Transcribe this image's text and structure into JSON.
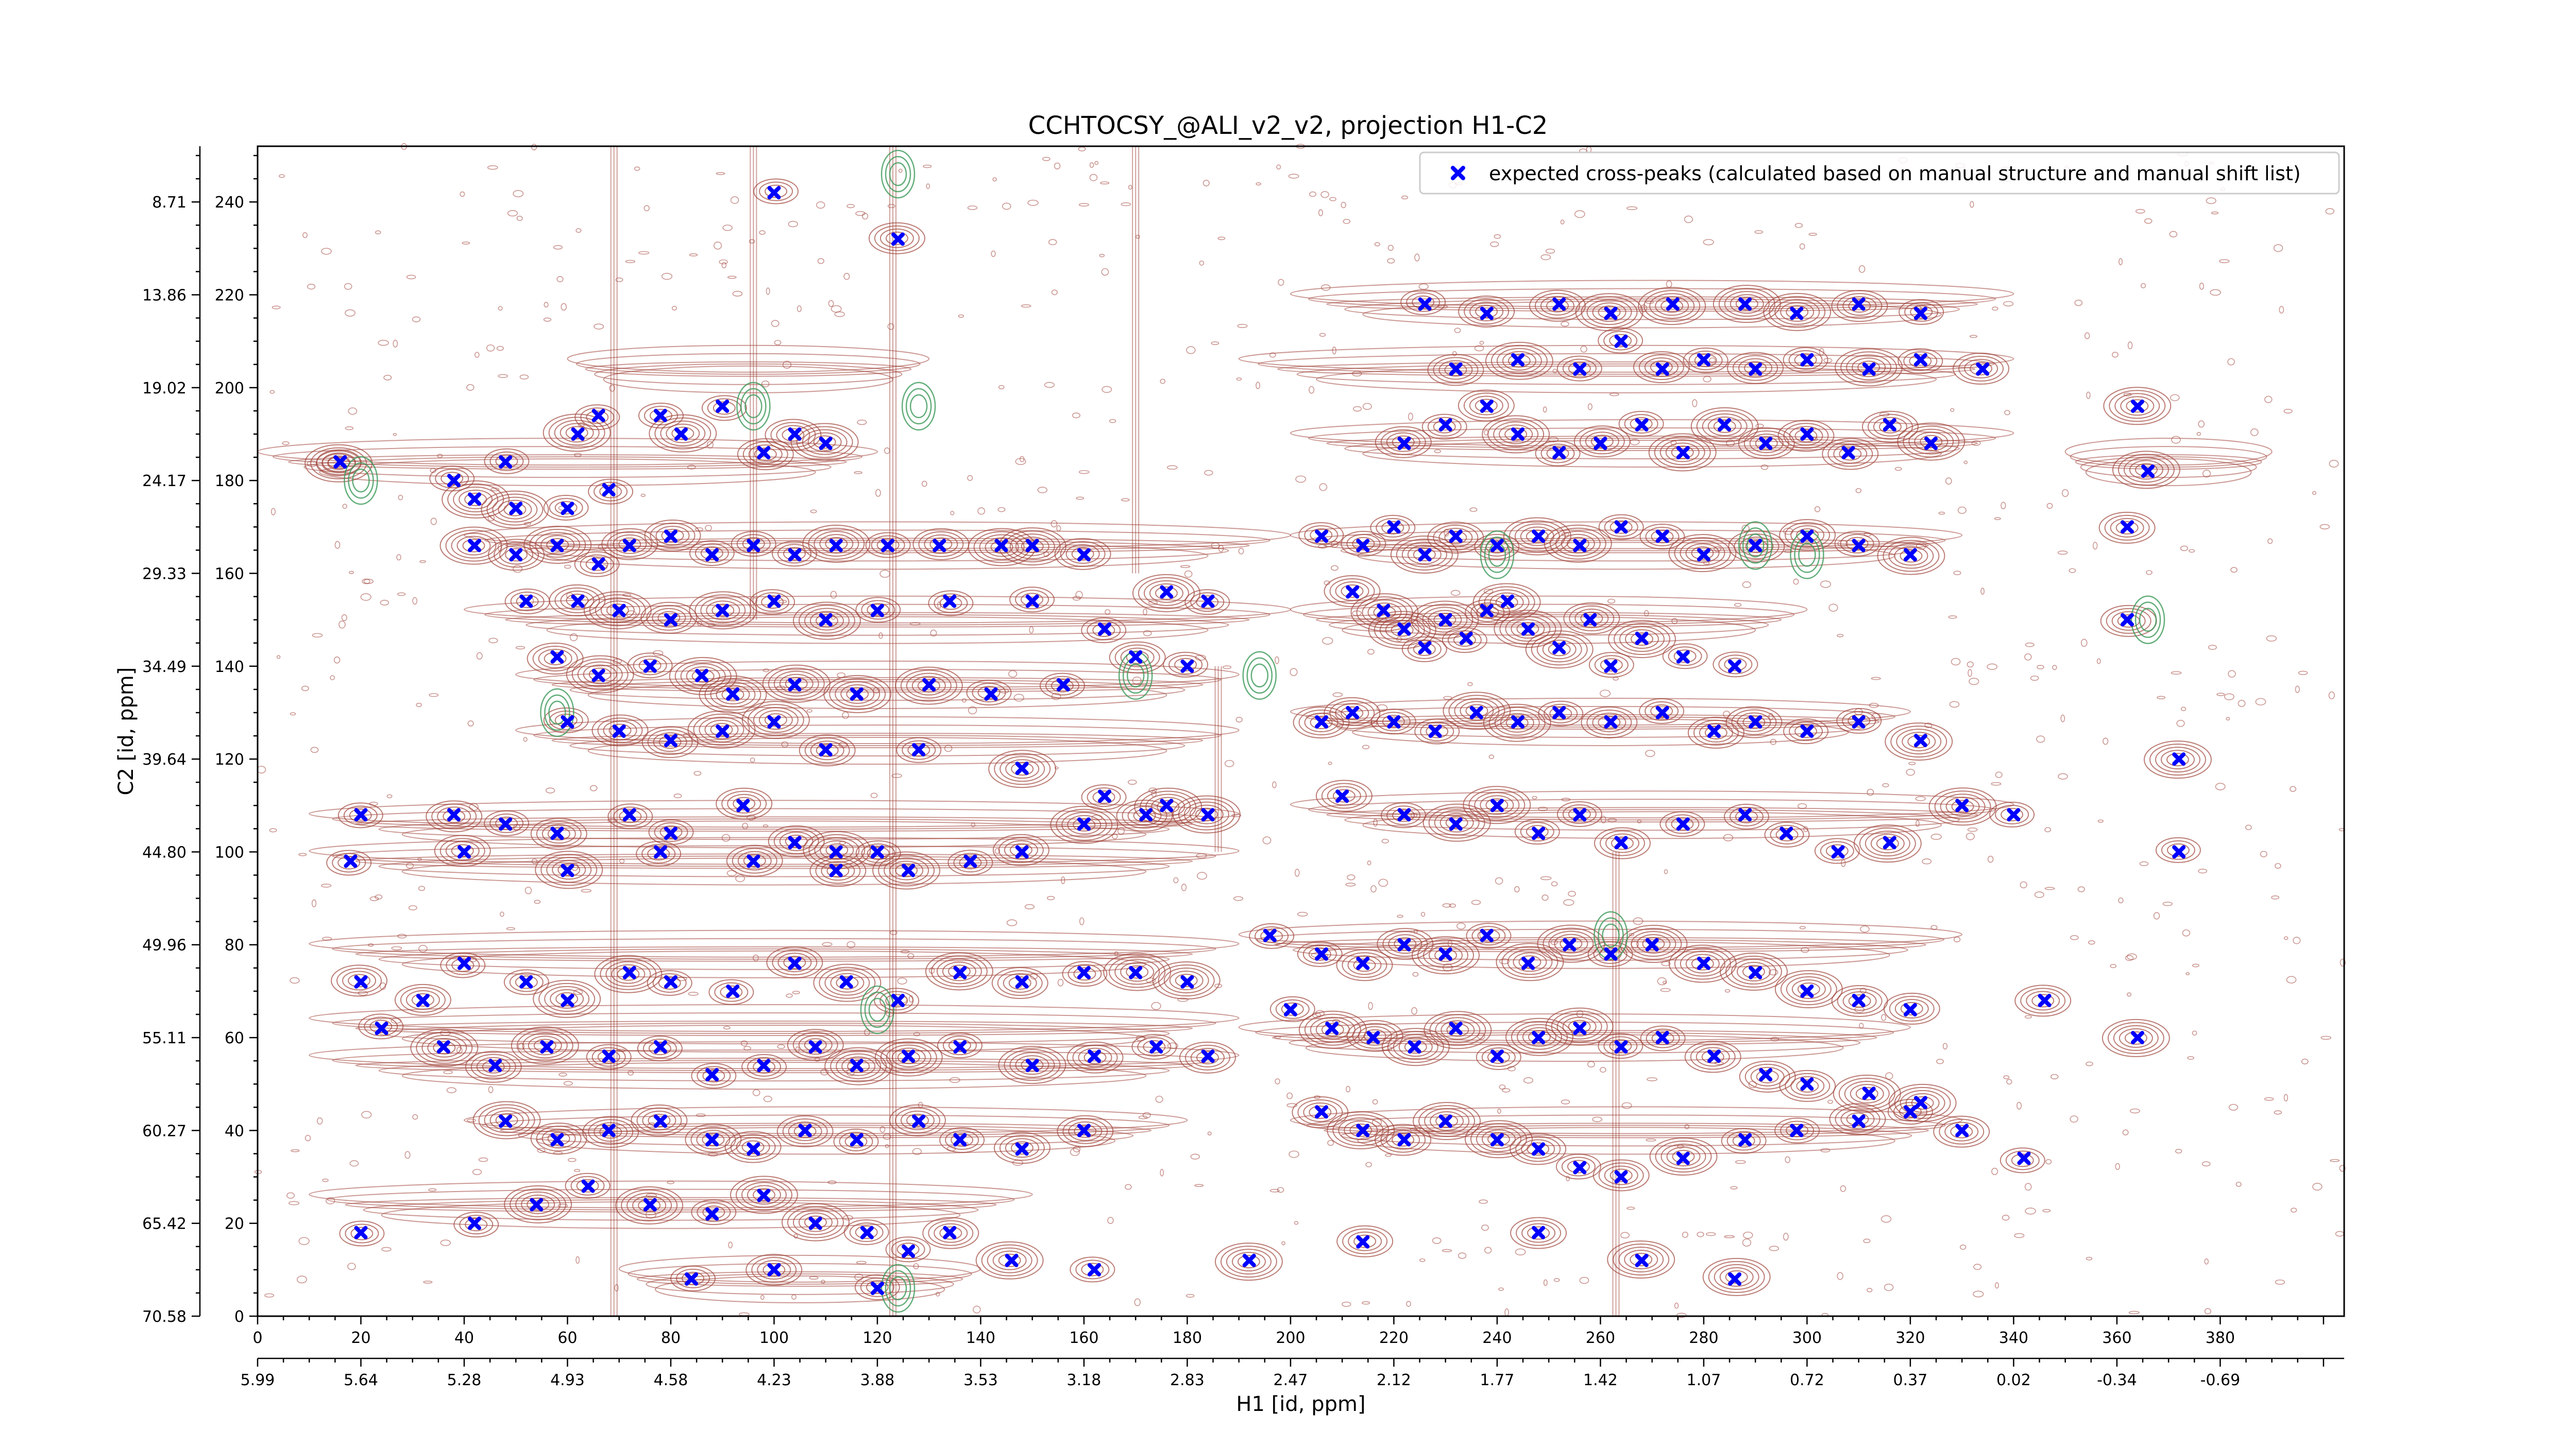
{
  "chart_data": {
    "type": "scatter",
    "title": "CCHTOCSY_@ALI_v2_v2, projection H1-C2",
    "xlabel": "H1 [id, ppm]",
    "ylabel": "C2 [id, ppm]",
    "xlim": [
      0,
      404
    ],
    "ylim": [
      0,
      252
    ],
    "x_ticks": [
      0,
      20,
      40,
      60,
      80,
      100,
      120,
      140,
      160,
      180,
      200,
      220,
      240,
      260,
      280,
      300,
      320,
      340,
      360,
      380
    ],
    "x_ppm_ticks": [
      "5.99",
      "5.64",
      "5.28",
      "4.93",
      "4.58",
      "4.23",
      "3.88",
      "3.53",
      "3.18",
      "2.83",
      "2.47",
      "2.12",
      "1.77",
      "1.42",
      "1.07",
      "0.72",
      "0.37",
      "0.02",
      "-0.34",
      "-0.69"
    ],
    "y_ticks": [
      0,
      20,
      40,
      60,
      80,
      100,
      120,
      140,
      160,
      180,
      200,
      220,
      240
    ],
    "y_ppm_ticks": [
      "70.58",
      "65.42",
      "60.27",
      "55.11",
      "49.96",
      "44.80",
      "39.64",
      "34.49",
      "29.33",
      "24.17",
      "19.02",
      "13.86",
      "8.71"
    ],
    "legend": {
      "placement": "top-right",
      "label": "expected cross-peaks (calculated based on manual structure and manual shift list)"
    },
    "colors": {
      "marker": "#0000ff",
      "contour_positive": "#a0443a",
      "contour_negative": "#3c9a5a"
    },
    "marker": "x",
    "series": [
      {
        "name": "expected cross-peaks (calculated based on manual structure and manual shift list)",
        "points": [
          [
            16,
            184
          ],
          [
            38,
            180
          ],
          [
            42,
            176
          ],
          [
            48,
            184
          ],
          [
            50,
            174
          ],
          [
            60,
            174
          ],
          [
            62,
            190
          ],
          [
            66,
            194
          ],
          [
            68,
            178
          ],
          [
            78,
            194
          ],
          [
            82,
            190
          ],
          [
            90,
            196
          ],
          [
            98,
            186
          ],
          [
            104,
            190
          ],
          [
            110,
            188
          ],
          [
            42,
            166
          ],
          [
            50,
            164
          ],
          [
            58,
            166
          ],
          [
            66,
            162
          ],
          [
            72,
            166
          ],
          [
            80,
            168
          ],
          [
            88,
            164
          ],
          [
            96,
            166
          ],
          [
            104,
            164
          ],
          [
            112,
            166
          ],
          [
            122,
            166
          ],
          [
            132,
            166
          ],
          [
            144,
            166
          ],
          [
            150,
            166
          ],
          [
            160,
            164
          ],
          [
            52,
            154
          ],
          [
            62,
            154
          ],
          [
            70,
            152
          ],
          [
            80,
            150
          ],
          [
            90,
            152
          ],
          [
            100,
            154
          ],
          [
            110,
            150
          ],
          [
            120,
            152
          ],
          [
            134,
            154
          ],
          [
            150,
            154
          ],
          [
            164,
            148
          ],
          [
            176,
            156
          ],
          [
            184,
            154
          ],
          [
            58,
            142
          ],
          [
            66,
            138
          ],
          [
            76,
            140
          ],
          [
            86,
            138
          ],
          [
            92,
            134
          ],
          [
            104,
            136
          ],
          [
            116,
            134
          ],
          [
            130,
            136
          ],
          [
            142,
            134
          ],
          [
            156,
            136
          ],
          [
            170,
            142
          ],
          [
            180,
            140
          ],
          [
            60,
            128
          ],
          [
            70,
            126
          ],
          [
            80,
            124
          ],
          [
            90,
            126
          ],
          [
            100,
            128
          ],
          [
            110,
            122
          ],
          [
            128,
            122
          ],
          [
            148,
            118
          ],
          [
            164,
            112
          ],
          [
            176,
            110
          ],
          [
            20,
            108
          ],
          [
            38,
            108
          ],
          [
            48,
            106
          ],
          [
            58,
            104
          ],
          [
            72,
            108
          ],
          [
            80,
            104
          ],
          [
            94,
            110
          ],
          [
            104,
            102
          ],
          [
            112,
            100
          ],
          [
            120,
            100
          ],
          [
            126,
            96
          ],
          [
            138,
            98
          ],
          [
            148,
            100
          ],
          [
            160,
            106
          ],
          [
            172,
            108
          ],
          [
            184,
            108
          ],
          [
            18,
            98
          ],
          [
            40,
            100
          ],
          [
            60,
            96
          ],
          [
            78,
            100
          ],
          [
            96,
            98
          ],
          [
            112,
            96
          ],
          [
            206,
            168
          ],
          [
            214,
            166
          ],
          [
            220,
            170
          ],
          [
            226,
            164
          ],
          [
            232,
            168
          ],
          [
            240,
            166
          ],
          [
            248,
            168
          ],
          [
            256,
            166
          ],
          [
            264,
            170
          ],
          [
            272,
            168
          ],
          [
            280,
            164
          ],
          [
            290,
            166
          ],
          [
            300,
            168
          ],
          [
            310,
            166
          ],
          [
            320,
            164
          ],
          [
            212,
            156
          ],
          [
            218,
            152
          ],
          [
            222,
            148
          ],
          [
            226,
            144
          ],
          [
            230,
            150
          ],
          [
            234,
            146
          ],
          [
            238,
            152
          ],
          [
            242,
            154
          ],
          [
            246,
            148
          ],
          [
            252,
            144
          ],
          [
            258,
            150
          ],
          [
            262,
            140
          ],
          [
            268,
            146
          ],
          [
            276,
            142
          ],
          [
            286,
            140
          ],
          [
            206,
            128
          ],
          [
            212,
            130
          ],
          [
            220,
            128
          ],
          [
            228,
            126
          ],
          [
            236,
            130
          ],
          [
            244,
            128
          ],
          [
            252,
            130
          ],
          [
            262,
            128
          ],
          [
            272,
            130
          ],
          [
            282,
            126
          ],
          [
            290,
            128
          ],
          [
            300,
            126
          ],
          [
            310,
            128
          ],
          [
            322,
            124
          ],
          [
            222,
            188
          ],
          [
            230,
            192
          ],
          [
            238,
            196
          ],
          [
            244,
            190
          ],
          [
            252,
            186
          ],
          [
            260,
            188
          ],
          [
            268,
            192
          ],
          [
            276,
            186
          ],
          [
            284,
            192
          ],
          [
            292,
            188
          ],
          [
            300,
            190
          ],
          [
            308,
            186
          ],
          [
            316,
            192
          ],
          [
            324,
            188
          ],
          [
            232,
            204
          ],
          [
            244,
            206
          ],
          [
            256,
            204
          ],
          [
            264,
            210
          ],
          [
            272,
            204
          ],
          [
            280,
            206
          ],
          [
            290,
            204
          ],
          [
            300,
            206
          ],
          [
            312,
            204
          ],
          [
            322,
            206
          ],
          [
            334,
            204
          ],
          [
            226,
            218
          ],
          [
            238,
            216
          ],
          [
            252,
            218
          ],
          [
            262,
            216
          ],
          [
            274,
            218
          ],
          [
            288,
            218
          ],
          [
            298,
            216
          ],
          [
            310,
            218
          ],
          [
            322,
            216
          ],
          [
            210,
            112
          ],
          [
            222,
            108
          ],
          [
            232,
            106
          ],
          [
            240,
            110
          ],
          [
            248,
            104
          ],
          [
            256,
            108
          ],
          [
            264,
            102
          ],
          [
            276,
            106
          ],
          [
            288,
            108
          ],
          [
            296,
            104
          ],
          [
            306,
            100
          ],
          [
            316,
            102
          ],
          [
            330,
            110
          ],
          [
            340,
            108
          ],
          [
            196,
            82
          ],
          [
            206,
            78
          ],
          [
            214,
            76
          ],
          [
            222,
            80
          ],
          [
            230,
            78
          ],
          [
            238,
            82
          ],
          [
            246,
            76
          ],
          [
            254,
            80
          ],
          [
            262,
            78
          ],
          [
            270,
            80
          ],
          [
            280,
            76
          ],
          [
            290,
            74
          ],
          [
            300,
            70
          ],
          [
            310,
            68
          ],
          [
            320,
            66
          ],
          [
            200,
            66
          ],
          [
            208,
            62
          ],
          [
            216,
            60
          ],
          [
            224,
            58
          ],
          [
            232,
            62
          ],
          [
            240,
            56
          ],
          [
            248,
            60
          ],
          [
            256,
            62
          ],
          [
            264,
            58
          ],
          [
            272,
            60
          ],
          [
            282,
            56
          ],
          [
            292,
            52
          ],
          [
            300,
            50
          ],
          [
            312,
            48
          ],
          [
            322,
            46
          ],
          [
            206,
            44
          ],
          [
            214,
            40
          ],
          [
            222,
            38
          ],
          [
            230,
            42
          ],
          [
            240,
            38
          ],
          [
            248,
            36
          ],
          [
            256,
            32
          ],
          [
            264,
            30
          ],
          [
            276,
            34
          ],
          [
            288,
            38
          ],
          [
            298,
            40
          ],
          [
            310,
            42
          ],
          [
            320,
            44
          ],
          [
            330,
            40
          ],
          [
            20,
            72
          ],
          [
            32,
            68
          ],
          [
            40,
            76
          ],
          [
            52,
            72
          ],
          [
            60,
            68
          ],
          [
            72,
            74
          ],
          [
            80,
            72
          ],
          [
            92,
            70
          ],
          [
            104,
            76
          ],
          [
            114,
            72
          ],
          [
            124,
            68
          ],
          [
            136,
            74
          ],
          [
            148,
            72
          ],
          [
            160,
            74
          ],
          [
            170,
            74
          ],
          [
            180,
            72
          ],
          [
            24,
            62
          ],
          [
            36,
            58
          ],
          [
            46,
            54
          ],
          [
            56,
            58
          ],
          [
            68,
            56
          ],
          [
            78,
            58
          ],
          [
            88,
            52
          ],
          [
            98,
            54
          ],
          [
            108,
            58
          ],
          [
            116,
            54
          ],
          [
            126,
            56
          ],
          [
            136,
            58
          ],
          [
            150,
            54
          ],
          [
            162,
            56
          ],
          [
            174,
            58
          ],
          [
            184,
            56
          ],
          [
            48,
            42
          ],
          [
            58,
            38
          ],
          [
            68,
            40
          ],
          [
            78,
            42
          ],
          [
            88,
            38
          ],
          [
            96,
            36
          ],
          [
            106,
            40
          ],
          [
            116,
            38
          ],
          [
            128,
            42
          ],
          [
            136,
            38
          ],
          [
            148,
            36
          ],
          [
            160,
            40
          ],
          [
            20,
            18
          ],
          [
            42,
            20
          ],
          [
            54,
            24
          ],
          [
            64,
            28
          ],
          [
            76,
            24
          ],
          [
            88,
            22
          ],
          [
            98,
            26
          ],
          [
            108,
            20
          ],
          [
            118,
            18
          ],
          [
            126,
            14
          ],
          [
            134,
            18
          ],
          [
            146,
            12
          ],
          [
            162,
            10
          ],
          [
            84,
            8
          ],
          [
            100,
            10
          ],
          [
            120,
            6
          ],
          [
            192,
            12
          ],
          [
            214,
            16
          ],
          [
            248,
            18
          ],
          [
            268,
            12
          ],
          [
            286,
            8
          ],
          [
            16,
            184
          ],
          [
            100,
            242
          ],
          [
            124,
            232
          ],
          [
            364,
            196
          ],
          [
            366,
            182
          ],
          [
            362,
            170
          ],
          [
            362,
            150
          ],
          [
            372,
            120
          ],
          [
            372,
            100
          ],
          [
            364,
            60
          ],
          [
            342,
            34
          ],
          [
            346,
            68
          ]
        ]
      }
    ]
  }
}
